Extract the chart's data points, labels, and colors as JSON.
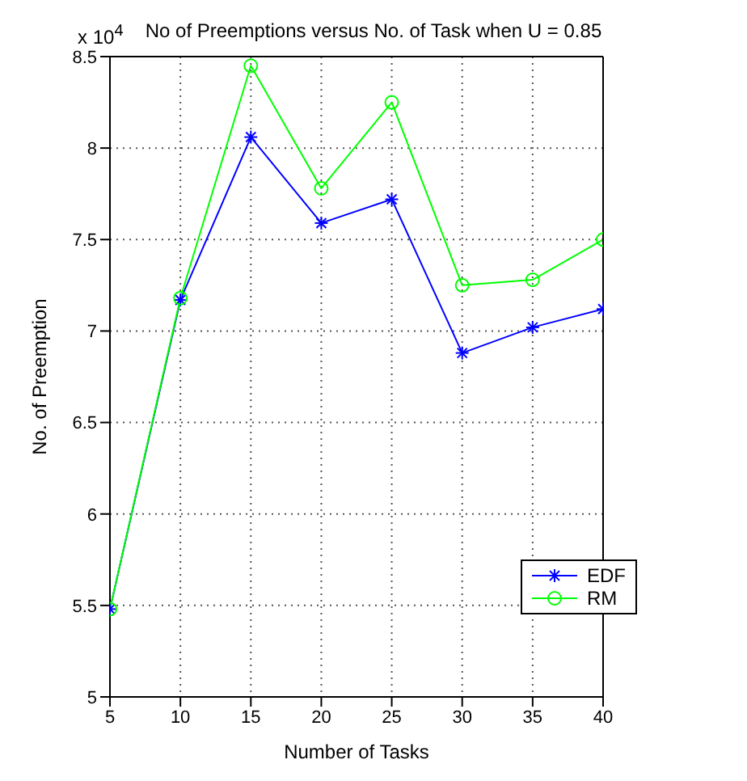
{
  "chart_data": {
    "type": "line",
    "title": "No of Preemptions versus No. of Task when U = 0.85",
    "xlabel": "Number of Tasks",
    "ylabel": "No. of Preemption",
    "annotations": [
      "x 10$^{4}$"
    ],
    "x": [
      5,
      10,
      15,
      20,
      25,
      30,
      35,
      40
    ],
    "series": [
      {
        "name": "EDF",
        "color": "#0000ff",
        "marker": "cross",
        "values": [
          5.48,
          7.17,
          8.06,
          7.59,
          7.72,
          6.88,
          7.02,
          7.12
        ]
      },
      {
        "name": "RM",
        "color": "#00ff00",
        "marker": "circle",
        "values": [
          5.48,
          7.18,
          8.45,
          7.78,
          8.25,
          7.25,
          7.28,
          7.5
        ]
      }
    ],
    "xlim": [
      5,
      40
    ],
    "xticks": [
      5,
      10,
      15,
      20,
      25,
      30,
      35,
      40
    ],
    "ylim": [
      5,
      8.5
    ],
    "yticks": [
      5,
      5.5,
      6,
      6.5,
      7,
      7.5,
      8,
      8.5
    ],
    "grid": true,
    "legend": "bottom right",
    "line_style": "solid"
  }
}
